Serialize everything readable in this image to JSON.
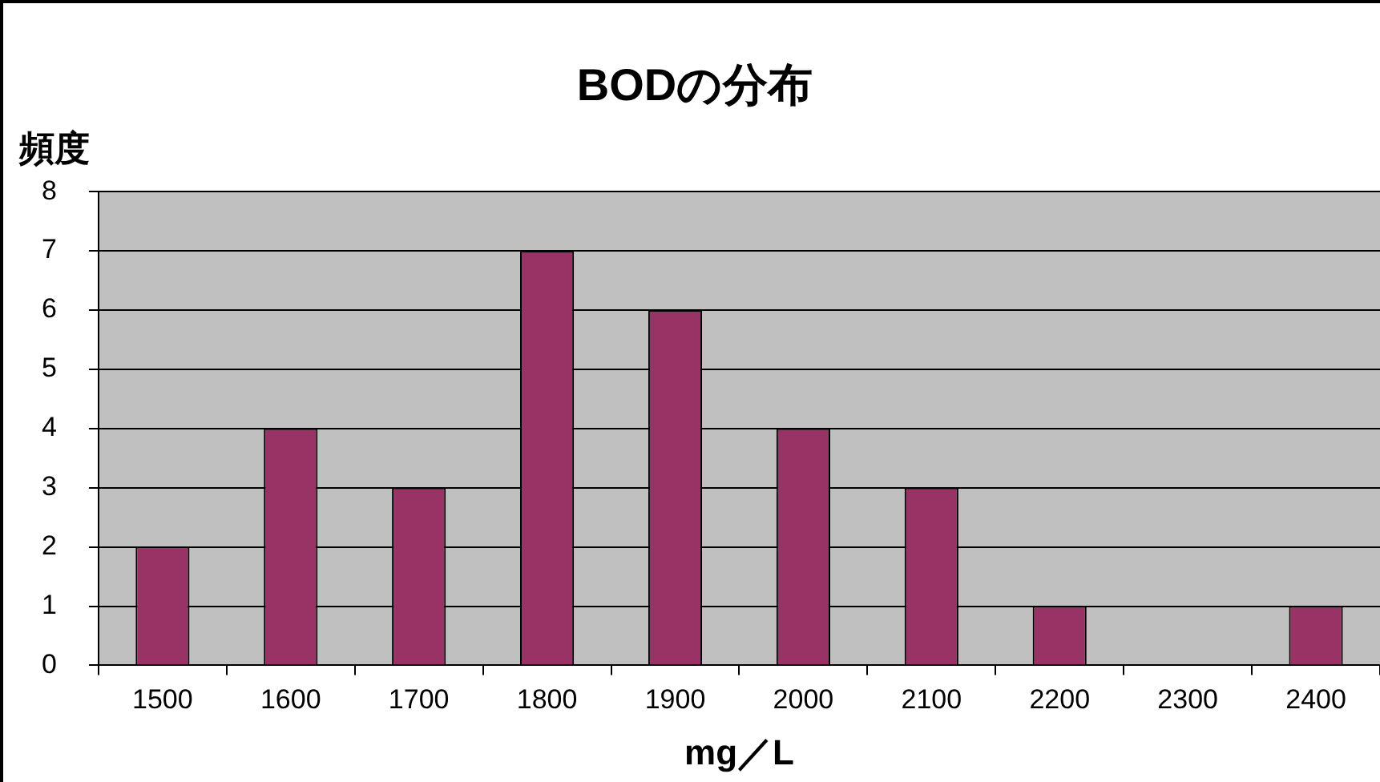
{
  "chart_data": {
    "type": "bar",
    "title": "BODの分布",
    "xlabel": "mg／L",
    "ylabel": "頻度",
    "categories": [
      "1500",
      "1600",
      "1700",
      "1800",
      "1900",
      "2000",
      "2100",
      "2200",
      "2300",
      "2400"
    ],
    "values": [
      2,
      4,
      3,
      7,
      6,
      4,
      3,
      1,
      0,
      1
    ],
    "color": "#993366",
    "ylim": [
      0,
      8
    ],
    "yticks": [
      0,
      1,
      2,
      3,
      4,
      5,
      6,
      7,
      8
    ],
    "grid": "y",
    "legend": false
  }
}
